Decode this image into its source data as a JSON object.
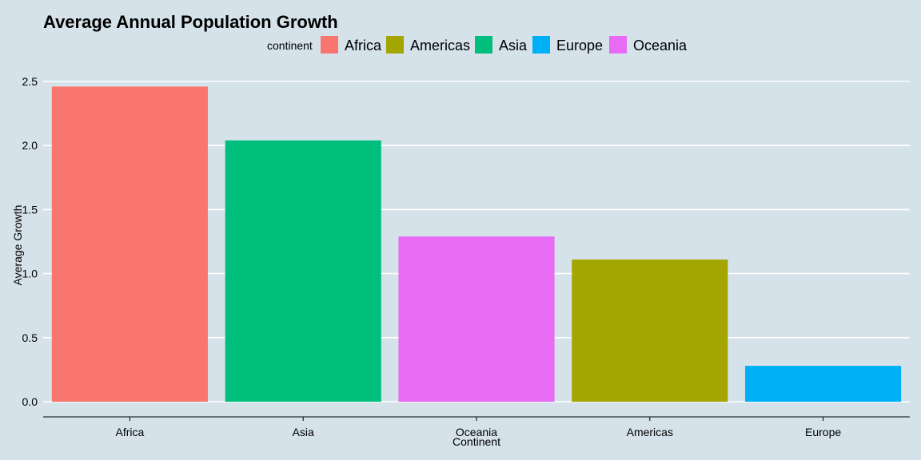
{
  "chart_data": {
    "type": "bar",
    "title": "Average Annual Population Growth",
    "xlabel": "Continent",
    "ylabel": "Average Growth",
    "categories": [
      "Africa",
      "Asia",
      "Oceania",
      "Americas",
      "Europe"
    ],
    "values": [
      2.46,
      2.04,
      1.29,
      1.11,
      0.28
    ],
    "ylim": [
      0,
      2.5
    ],
    "yticks": [
      "0.0",
      "0.5",
      "1.0",
      "1.5",
      "2.0",
      "2.5"
    ],
    "ytick_values": [
      0,
      0.5,
      1.0,
      1.5,
      2.0,
      2.5
    ],
    "grid": true,
    "legend": {
      "title": "continent",
      "placement": "top",
      "entries": [
        {
          "label": "Africa",
          "color": "#f8766d"
        },
        {
          "label": "Americas",
          "color": "#a3a500"
        },
        {
          "label": "Asia",
          "color": "#00bf7d"
        },
        {
          "label": "Europe",
          "color": "#00b0f6"
        },
        {
          "label": "Oceania",
          "color": "#e76bf3"
        }
      ]
    },
    "bar_colors": {
      "Africa": "#f8766d",
      "Americas": "#a3a500",
      "Asia": "#00bf7d",
      "Europe": "#00b0f6",
      "Oceania": "#e76bf3"
    }
  }
}
